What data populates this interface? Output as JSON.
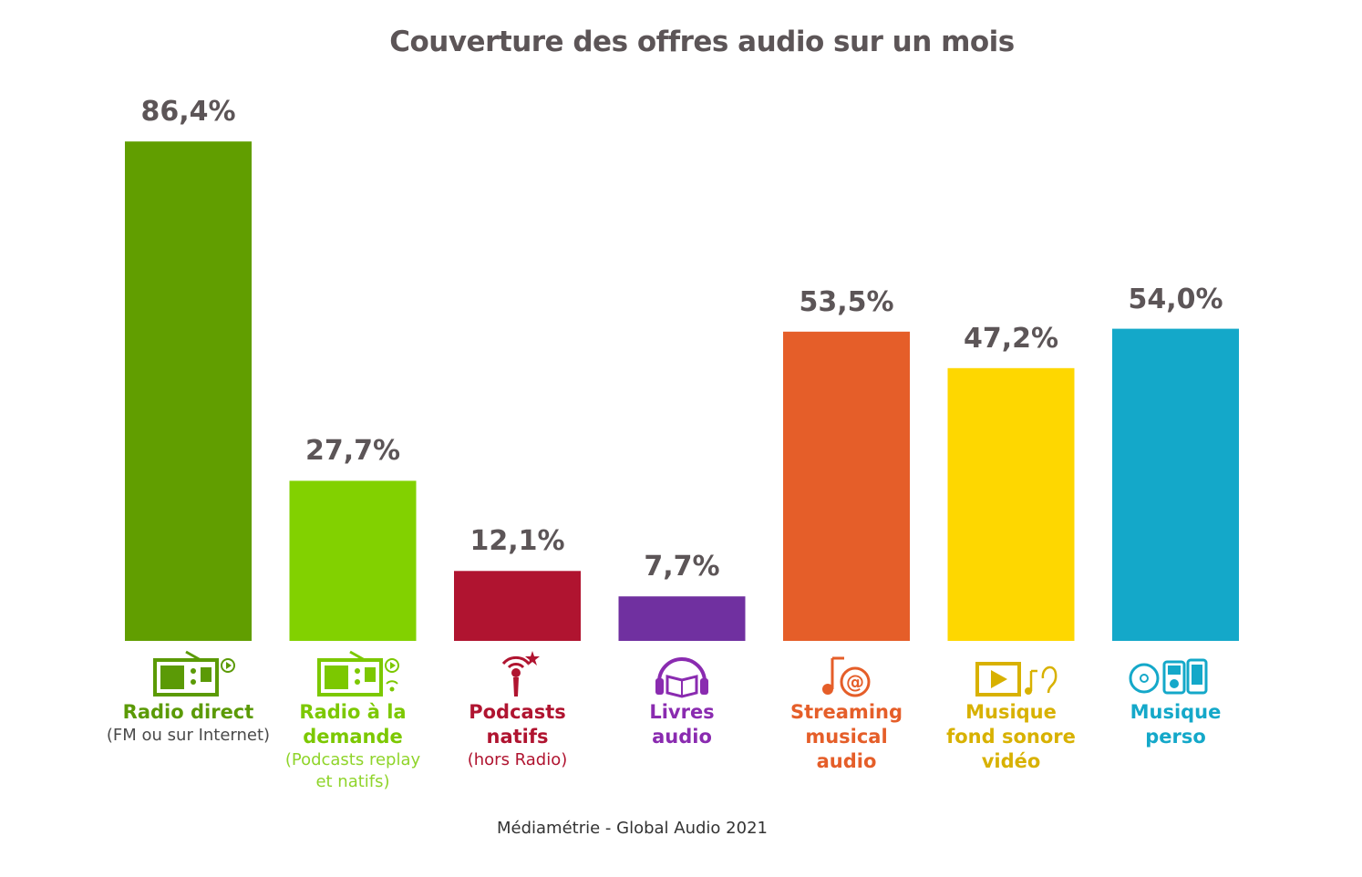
{
  "chart_data": {
    "type": "bar",
    "title": "Couverture des offres audio sur un mois",
    "ylim": [
      0,
      100
    ],
    "grid": false,
    "legend": "none",
    "categories": [
      {
        "label": "Radio direct",
        "sub": "(FM ou sur Internet)",
        "value": 86.4,
        "value_label": "86,4%",
        "color": "#619e00",
        "label_color": "#5b9a06",
        "sub_color": "#4a4a4a",
        "icon": "radio-play-icon"
      },
      {
        "label": "Radio à la\ndemande",
        "sub": "(Podcasts replay\net natifs)",
        "value": 27.7,
        "value_label": "27,7%",
        "color": "#82d100",
        "label_color": "#7cc800",
        "sub_color": "#8fd42a",
        "icon": "radio-podcast-icon"
      },
      {
        "label": "Podcasts\nnatifs",
        "sub": "(hors Radio)",
        "value": 12.1,
        "value_label": "12,1%",
        "color": "#b01430",
        "label_color": "#b01430",
        "sub_color": "#b01430",
        "icon": "podcast-antenna-icon"
      },
      {
        "label": "Livres\naudio",
        "sub": "",
        "value": 7.7,
        "value_label": "7,7%",
        "color": "#7030a0",
        "label_color": "#8a2bb0",
        "sub_color": "#8a2bb0",
        "icon": "headphones-book-icon"
      },
      {
        "label": "Streaming\nmusical\naudio",
        "sub": "",
        "value": 53.5,
        "value_label": "53,5%",
        "color": "#e55e29",
        "label_color": "#e55e29",
        "sub_color": "#e55e29",
        "icon": "music-at-icon"
      },
      {
        "label": "Musique\nfond sonore\nvidéo",
        "sub": "",
        "value": 47.2,
        "value_label": "47,2%",
        "color": "#fed700",
        "label_color": "#d8b100",
        "sub_color": "#d8b100",
        "icon": "video-music-ear-icon"
      },
      {
        "label": "Musique\nperso",
        "sub": "",
        "value": 54.0,
        "value_label": "54,0%",
        "color": "#14a8c9",
        "label_color": "#14a8c9",
        "sub_color": "#14a8c9",
        "icon": "cd-ipod-phone-icon"
      }
    ]
  },
  "source": "Médiamétrie - Global Audio 2021"
}
